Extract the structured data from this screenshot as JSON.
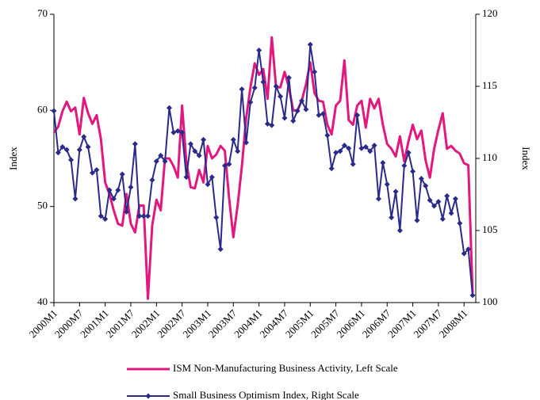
{
  "chart_data": {
    "type": "line",
    "categories": [
      "2000M1",
      null,
      null,
      null,
      null,
      null,
      "2000M7",
      null,
      null,
      null,
      null,
      null,
      "2001M1",
      null,
      null,
      null,
      null,
      null,
      "2001M7",
      null,
      null,
      null,
      null,
      null,
      "2002M1",
      null,
      null,
      null,
      null,
      null,
      "2002M7",
      null,
      null,
      null,
      null,
      null,
      "2003M1",
      null,
      null,
      null,
      null,
      null,
      "2003M7",
      null,
      null,
      null,
      null,
      null,
      "2004M1",
      null,
      null,
      null,
      null,
      null,
      "2004M7",
      null,
      null,
      null,
      null,
      null,
      "2005M1",
      null,
      null,
      null,
      null,
      null,
      "2005M7",
      null,
      null,
      null,
      null,
      null,
      "2006M1",
      null,
      null,
      null,
      null,
      null,
      "2006M7",
      null,
      null,
      null,
      null,
      null,
      "2007M1",
      null,
      null,
      null,
      null,
      null,
      "2007M7",
      null,
      null,
      null,
      null,
      null,
      "2008M1",
      null,
      null
    ],
    "ylabel": "Index",
    "y2label": "Index",
    "ylim": [
      40,
      70
    ],
    "yticks": [
      40,
      50,
      60,
      70
    ],
    "y2lim": [
      100,
      120
    ],
    "y2ticks": [
      100,
      105,
      110,
      115,
      120
    ],
    "series": [
      {
        "name": "ISM Non-Manufacturing Business Activity, Left Scale",
        "color": "#e2187f",
        "axis": "y",
        "values": [
          57.7,
          58.3,
          59.9,
          60.9,
          59.9,
          60.3,
          57.5,
          61.3,
          59.7,
          58.6,
          59.5,
          57.0,
          52.5,
          51.3,
          49.6,
          48.2,
          48.0,
          51.3,
          48.2,
          47.3,
          50.1,
          50.1,
          40.4,
          48.0,
          50.7,
          49.6,
          55.0,
          55.0,
          54.2,
          53.0,
          60.5,
          54.6,
          52.0,
          51.9,
          53.8,
          52.5,
          56.3,
          55.0,
          55.4,
          56.3,
          55.8,
          50.9,
          46.8,
          50.1,
          54.2,
          59.2,
          62.4,
          64.9,
          63.7,
          64.3,
          61.2,
          67.6,
          62.4,
          62.4,
          64.0,
          62.4,
          60.0,
          60.0,
          61.0,
          62.7,
          65.0,
          61.8,
          61.0,
          60.9,
          58.5,
          57.5,
          60.5,
          61.0,
          65.2,
          59.0,
          58.5,
          60.5,
          61.0,
          58.2,
          61.2,
          60.2,
          61.2,
          58.5,
          56.5,
          56.0,
          55.2,
          57.3,
          54.7,
          56.8,
          58.5,
          57.0,
          57.9,
          54.8,
          53.0,
          56.0,
          58.0,
          59.7,
          56.0,
          56.3,
          55.8,
          55.5,
          54.5,
          54.3,
          41.0
        ]
      },
      {
        "name": "Small Business Optimism Index, Right Scale",
        "color": "#2a2a8a",
        "axis": "y2",
        "marker": "diamond",
        "values": [
          113.3,
          110.4,
          110.8,
          110.6,
          109.9,
          107.2,
          110.6,
          111.5,
          110.8,
          109.0,
          109.2,
          106.0,
          105.8,
          107.8,
          107.2,
          107.8,
          108.9,
          106.3,
          108.0,
          111.0,
          106.0,
          106.0,
          106.0,
          108.5,
          109.8,
          110.2,
          109.8,
          113.5,
          111.8,
          111.9,
          111.8,
          108.7,
          111.0,
          110.5,
          110.2,
          111.3,
          108.2,
          108.7,
          105.9,
          103.7,
          109.5,
          109.6,
          111.3,
          110.5,
          114.8,
          111.1,
          113.9,
          114.9,
          117.5,
          115.3,
          112.4,
          112.3,
          115.0,
          114.3,
          112.8,
          115.6,
          112.6,
          113.3,
          114.0,
          113.4,
          117.9,
          116.0,
          113.0,
          113.1,
          111.6,
          109.3,
          110.4,
          110.5,
          110.9,
          110.7,
          109.6,
          113.0,
          110.7,
          110.8,
          110.5,
          110.9,
          107.2,
          109.7,
          108.2,
          105.9,
          107.7,
          105.0,
          109.5,
          110.4,
          109.1,
          105.7,
          108.6,
          108.1,
          107.1,
          106.7,
          107.0,
          105.8,
          107.4,
          106.2,
          107.2,
          105.5,
          103.4,
          103.7,
          100.5
        ]
      }
    ]
  }
}
